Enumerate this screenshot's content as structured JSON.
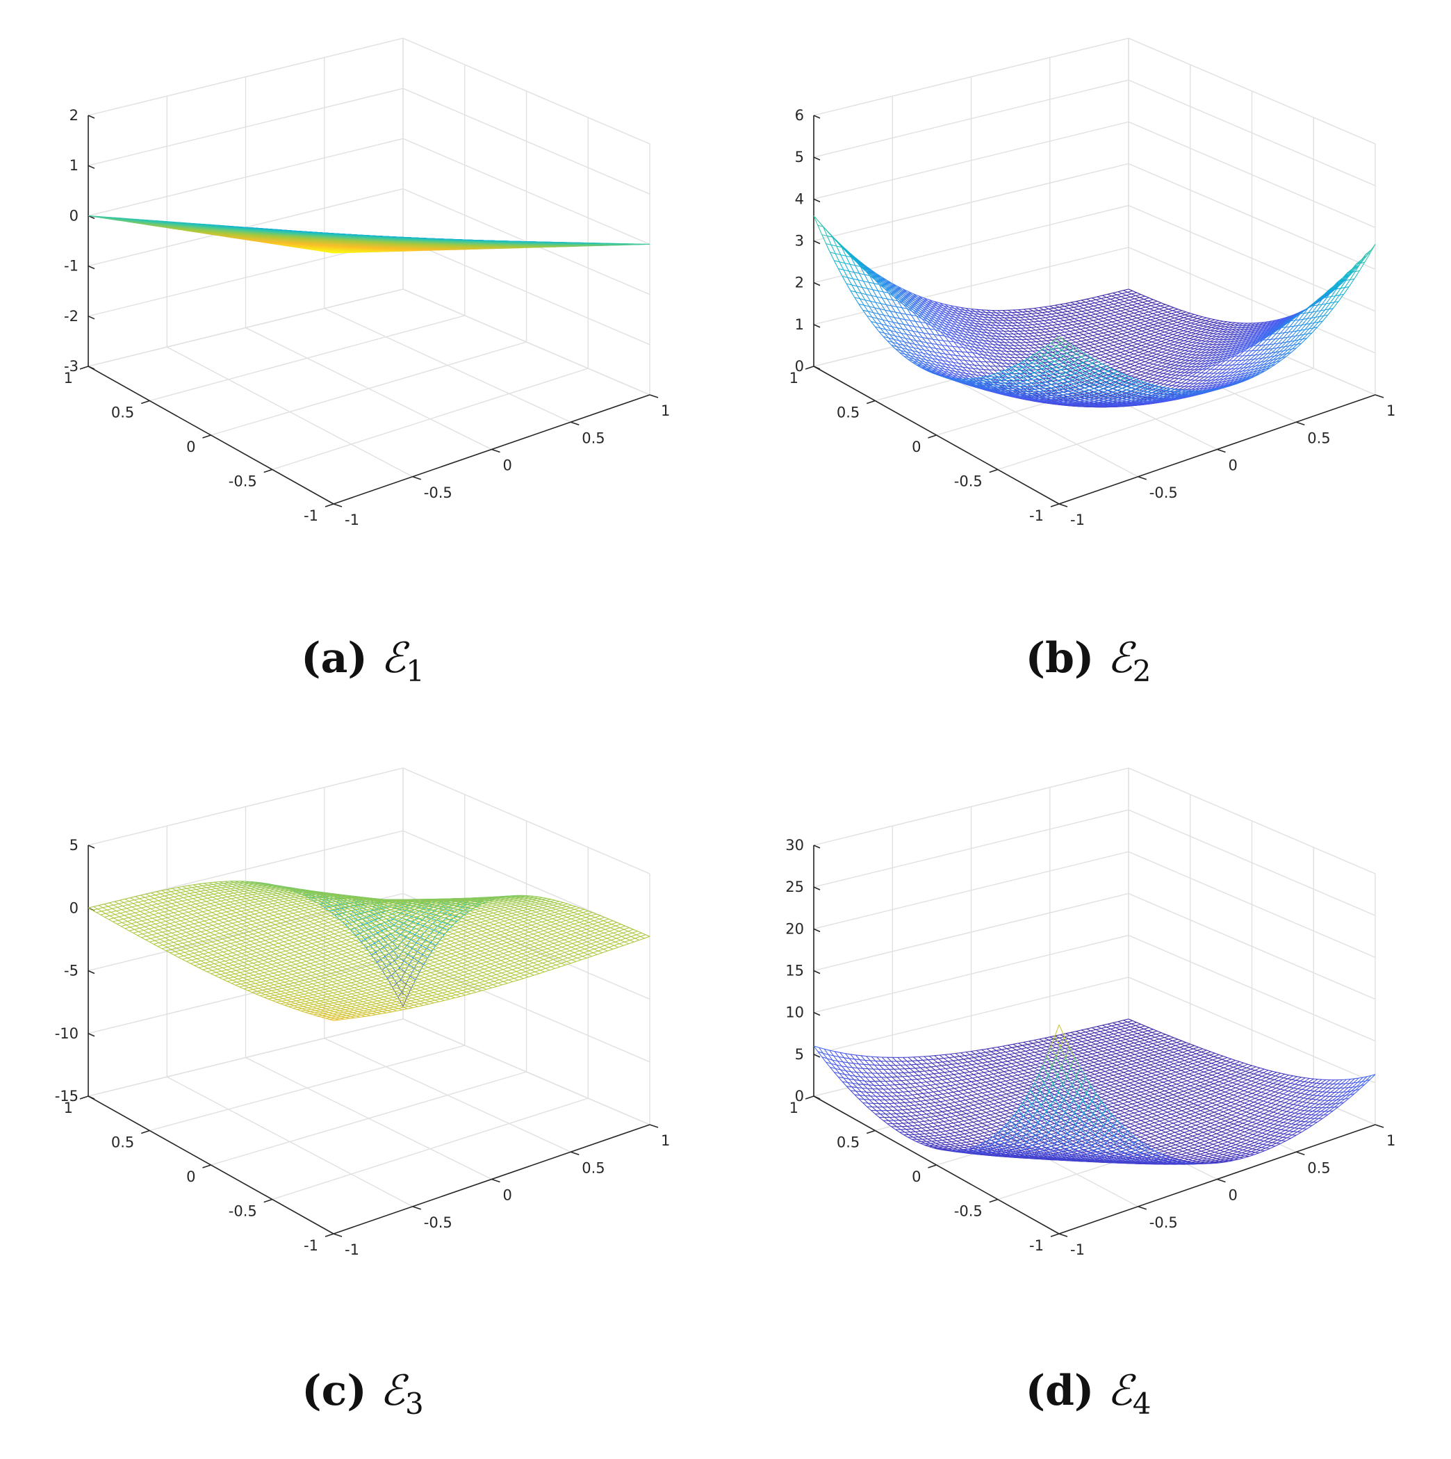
{
  "chart_data": [
    {
      "type": "surface",
      "id": "a",
      "caption": {
        "letter": "(a)",
        "symbol": "ℰ",
        "subscript": "1"
      },
      "zlim": [
        -3,
        2
      ],
      "zticks": [
        2,
        1,
        0,
        -1,
        -2,
        -3
      ],
      "xticks": [
        "-1",
        "-0.5",
        "0",
        "0.5",
        "1"
      ],
      "yticks": [
        "1",
        "0.5",
        "0",
        "-0.5",
        "-1"
      ],
      "zticklabels": [
        "2",
        "1",
        "0",
        "-1",
        "-2",
        "-3"
      ],
      "function": "x+y",
      "colormap": "parula",
      "grid": true
    },
    {
      "type": "surface",
      "id": "b",
      "caption": {
        "letter": "(b)",
        "symbol": "ℰ",
        "subscript": "2"
      },
      "zlim": [
        0,
        6
      ],
      "zticks": [
        6,
        5,
        4,
        3,
        2,
        1,
        0
      ],
      "xticks": [
        "-1",
        "-0.5",
        "0",
        "0.5",
        "1"
      ],
      "yticks": [
        "1",
        "0.5",
        "0",
        "-0.5",
        "-1"
      ],
      "zticklabels": [
        "6",
        "5",
        "4",
        "3",
        "2",
        "1",
        "0"
      ],
      "function": "(x+y)^2-ish",
      "colormap": "parula",
      "grid": true
    },
    {
      "type": "surface",
      "id": "c",
      "caption": {
        "letter": "(c)",
        "symbol": "ℰ",
        "subscript": "3"
      },
      "zlim": [
        -15,
        5
      ],
      "zticks": [
        5,
        0,
        -5,
        -10,
        -15
      ],
      "xticks": [
        "-1",
        "-0.5",
        "0",
        "0.5",
        "1"
      ],
      "yticks": [
        "1",
        "0.5",
        "0",
        "-0.5",
        "-1"
      ],
      "zticklabels": [
        "5",
        "0",
        "-5",
        "-10",
        "-15"
      ],
      "function": "(x+y)^3-ish",
      "colormap": "parula",
      "grid": true
    },
    {
      "type": "surface",
      "id": "d",
      "caption": {
        "letter": "(d)",
        "symbol": "ℰ",
        "subscript": "4"
      },
      "zlim": [
        0,
        30
      ],
      "zticks": [
        30,
        25,
        20,
        15,
        10,
        5,
        0
      ],
      "xticks": [
        "-1",
        "-0.5",
        "0",
        "0.5",
        "1"
      ],
      "yticks": [
        "1",
        "0.5",
        "0",
        "-0.5",
        "-1"
      ],
      "zticklabels": [
        "30",
        "25",
        "20",
        "15",
        "10",
        "5",
        "0"
      ],
      "function": "(x+y)^4-ish",
      "colormap": "parula",
      "grid": true
    }
  ]
}
